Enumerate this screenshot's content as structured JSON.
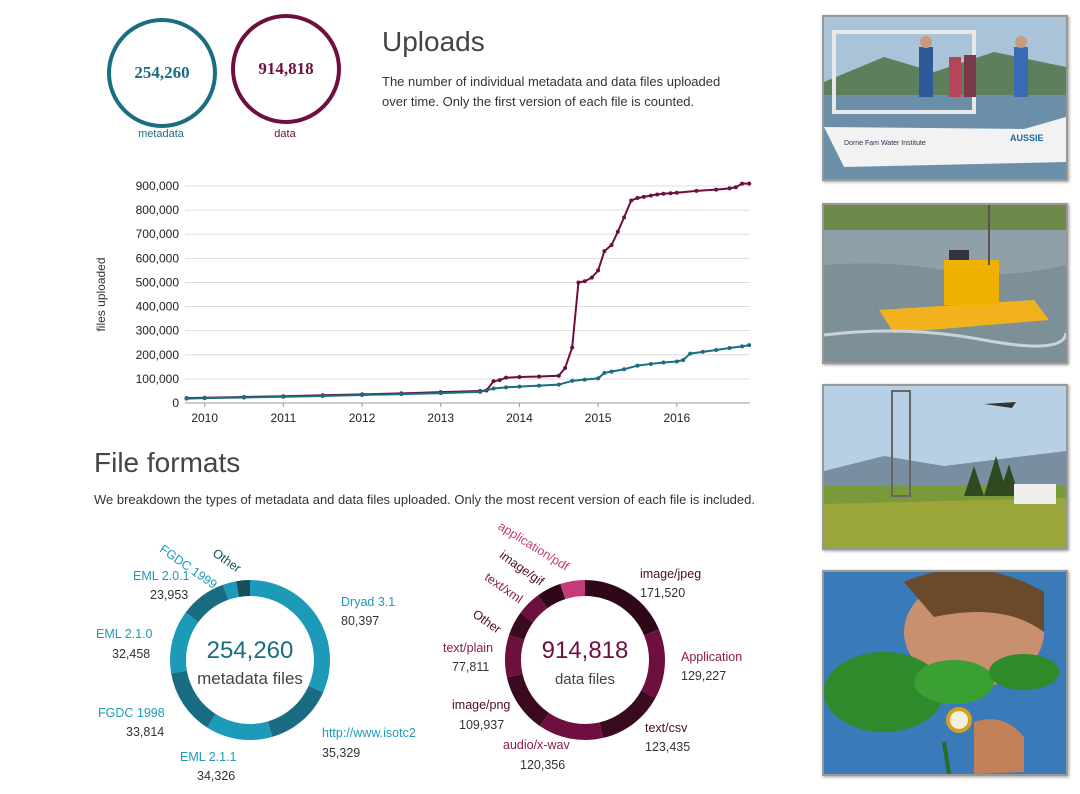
{
  "summary": {
    "metadata_count": "254,260",
    "metadata_label": "metadata",
    "data_count": "914,818",
    "data_label": "data",
    "metadata_color": "#1b6d80",
    "data_color": "#6d0f3f"
  },
  "uploads": {
    "title": "Uploads",
    "description": "The number of individual metadata and data files uploaded over time. Only the first version of each file is counted."
  },
  "formats": {
    "title": "File formats",
    "description": "We breakdown the types of metadata and data files uploaded. Only the most recent version of each file is included."
  },
  "photos": [
    {
      "icon": "boat-scientists-photo"
    },
    {
      "icon": "lake-buoy-photo"
    },
    {
      "icon": "tower-airplane-photo"
    },
    {
      "icon": "plant-researcher-photo"
    }
  ],
  "chart_data": [
    {
      "type": "line",
      "xlabel": "",
      "ylabel": "files uploaded",
      "xlim": [
        2009.75,
        2016.93
      ],
      "ylim": [
        0,
        900000
      ],
      "yticks": [
        "0",
        "100,000",
        "200,000",
        "300,000",
        "400,000",
        "500,000",
        "600,000",
        "700,000",
        "800,000",
        "900,000"
      ],
      "xticks": [
        "2010",
        "2011",
        "2012",
        "2013",
        "2014",
        "2015",
        "2016"
      ],
      "grid": true,
      "series": [
        {
          "color": "#6d0f3f",
          "x": [
            2009.77,
            2010.0,
            2010.5,
            2011.0,
            2011.5,
            2012.0,
            2012.5,
            2013.0,
            2013.5,
            2013.58,
            2013.67,
            2013.75,
            2013.83,
            2014.0,
            2014.25,
            2014.5,
            2014.58,
            2014.67,
            2014.75,
            2014.83,
            2014.92,
            2015.0,
            2015.08,
            2015.17,
            2015.25,
            2015.33,
            2015.42,
            2015.5,
            2015.58,
            2015.67,
            2015.75,
            2015.83,
            2015.92,
            2016.0,
            2016.25,
            2016.5,
            2016.67,
            2016.75,
            2016.83,
            2016.92
          ],
          "y": [
            20000,
            22000,
            25000,
            28000,
            32000,
            36000,
            40000,
            45000,
            50000,
            52000,
            90000,
            95000,
            105000,
            108000,
            110000,
            113000,
            145000,
            230000,
            500000,
            505000,
            520000,
            550000,
            630000,
            655000,
            710000,
            770000,
            840000,
            850000,
            855000,
            860000,
            865000,
            868000,
            870000,
            872000,
            880000,
            885000,
            890000,
            895000,
            910000,
            910000
          ]
        },
        {
          "color": "#1b6d80",
          "x": [
            2009.77,
            2010.0,
            2010.5,
            2011.0,
            2011.5,
            2012.0,
            2012.5,
            2013.0,
            2013.5,
            2013.67,
            2013.83,
            2014.0,
            2014.25,
            2014.5,
            2014.67,
            2014.83,
            2015.0,
            2015.08,
            2015.17,
            2015.33,
            2015.5,
            2015.67,
            2015.83,
            2016.0,
            2016.08,
            2016.17,
            2016.33,
            2016.5,
            2016.67,
            2016.83,
            2016.92
          ],
          "y": [
            18000,
            20000,
            23000,
            26000,
            29000,
            33000,
            37000,
            41000,
            46000,
            60000,
            65000,
            68000,
            72000,
            76000,
            92000,
            97000,
            102000,
            125000,
            130000,
            140000,
            155000,
            162000,
            168000,
            172000,
            178000,
            205000,
            212000,
            220000,
            228000,
            235000,
            240000
          ]
        }
      ]
    },
    {
      "type": "pie",
      "center_value": "254,260",
      "center_label": "metadata files",
      "color": "#1b6d80",
      "slices": [
        {
          "label": "Dryad 3.1",
          "value": "80,397",
          "color": "#1e9ab9"
        },
        {
          "label": "http://www.isotc2",
          "value": "35,329",
          "color": "#1a6c82"
        },
        {
          "label": "EML 2.1.1",
          "value": "34,326",
          "color": "#1e9ab9"
        },
        {
          "label": "FGDC 1998",
          "value": "33,814",
          "color": "#1a6c82"
        },
        {
          "label": "EML 2.1.0",
          "value": "32,458",
          "color": "#1e9ab9"
        },
        {
          "label": "EML 2.0.1",
          "value": "23,953",
          "color": "#1a6c82"
        },
        {
          "label": "FGDC 1999",
          "value": "",
          "color": "#1e9ab9"
        },
        {
          "label": "Other",
          "value": "",
          "color": "#164e5c"
        }
      ]
    },
    {
      "type": "pie",
      "center_value": "914,818",
      "center_label": "data files",
      "color": "#6d0f3f",
      "slices": [
        {
          "label": "image/jpeg",
          "value": "171,520",
          "color": "#2e0718"
        },
        {
          "label": "Application",
          "value": "129,227",
          "color": "#6d0f3f"
        },
        {
          "label": "text/csv",
          "value": "123,435",
          "color": "#3a0a20"
        },
        {
          "label": "audio/x-wav",
          "value": "120,356",
          "color": "#6d0f3f"
        },
        {
          "label": "image/png",
          "value": "109,937",
          "color": "#3a0a20"
        },
        {
          "label": "text/plain",
          "value": "77,811",
          "color": "#6d0f3f"
        },
        {
          "label": "Other",
          "value": "",
          "color": "#3a0a20"
        },
        {
          "label": "text/xml",
          "value": "",
          "color": "#6d0f3f"
        },
        {
          "label": "image/gif",
          "value": "",
          "color": "#2e0718"
        },
        {
          "label": "application/pdf",
          "value": "",
          "color": "#c73a7a"
        }
      ]
    }
  ]
}
